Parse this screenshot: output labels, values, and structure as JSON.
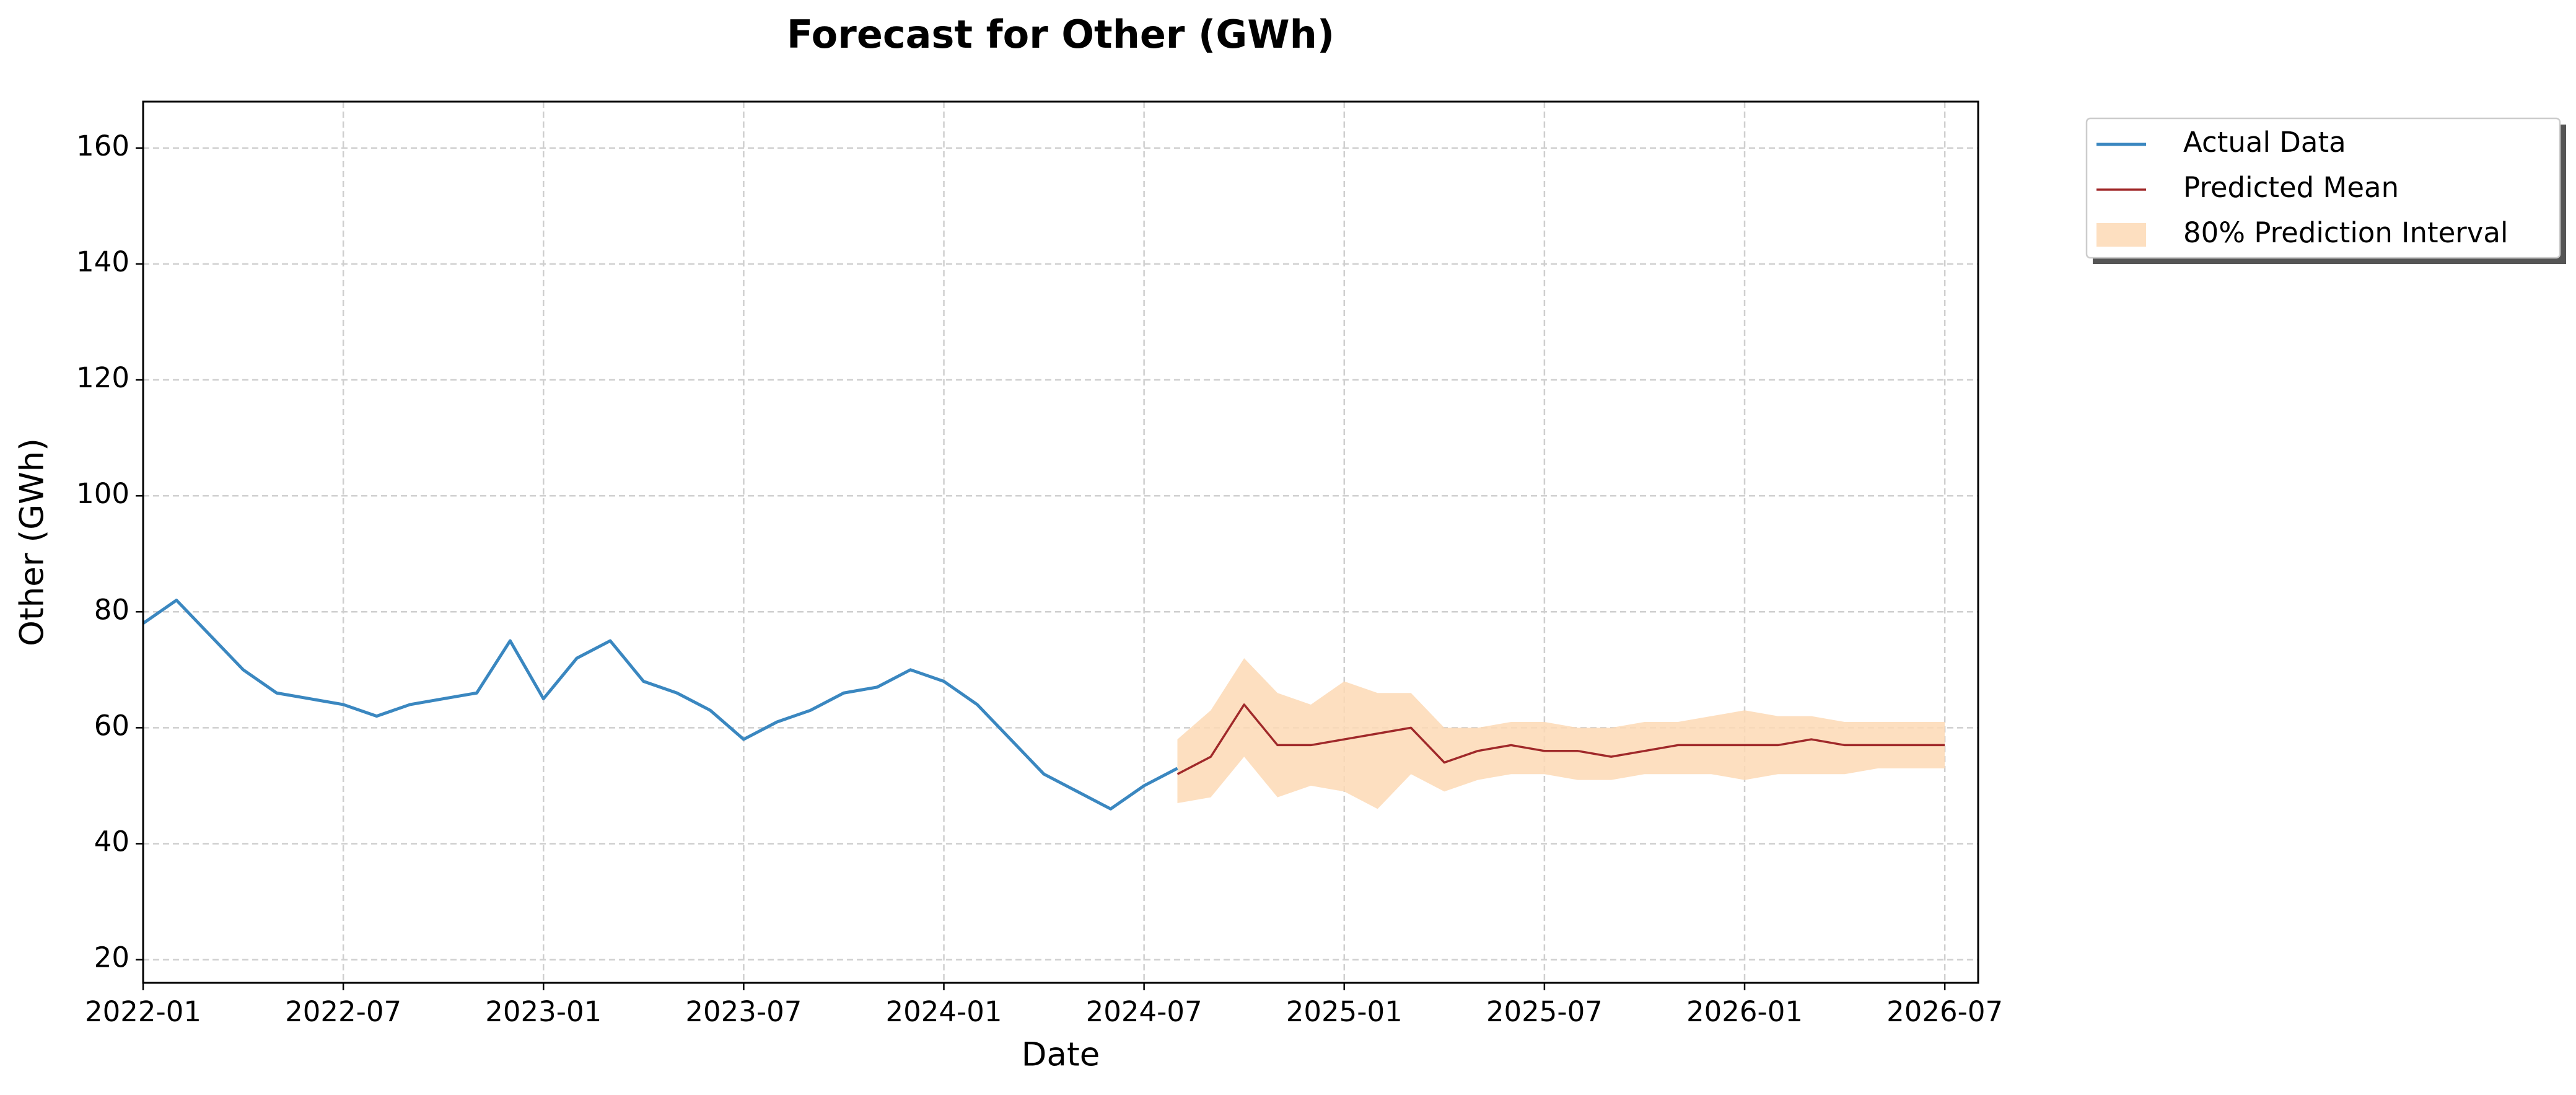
{
  "chart_data": {
    "type": "line",
    "title": "Forecast for Other (GWh)",
    "xlabel": "Date",
    "ylabel": "Other (GWh)",
    "x": [
      "2022-01",
      "2022-02",
      "2022-03",
      "2022-04",
      "2022-05",
      "2022-06",
      "2022-07",
      "2022-08",
      "2022-09",
      "2022-10",
      "2022-11",
      "2022-12",
      "2023-01",
      "2023-02",
      "2023-03",
      "2023-04",
      "2023-05",
      "2023-06",
      "2023-07",
      "2023-08",
      "2023-09",
      "2023-10",
      "2023-11",
      "2023-12",
      "2024-01",
      "2024-02",
      "2024-03",
      "2024-04",
      "2024-05",
      "2024-06",
      "2024-07",
      "2024-08",
      "2024-09",
      "2024-10",
      "2024-11",
      "2024-12",
      "2025-01",
      "2025-02",
      "2025-03",
      "2025-04",
      "2025-05",
      "2025-06",
      "2025-07",
      "2025-08",
      "2025-09",
      "2025-10",
      "2025-11",
      "2025-12",
      "2026-01",
      "2026-02",
      "2026-03",
      "2026-04",
      "2026-05",
      "2026-06",
      "2026-07"
    ],
    "series": [
      {
        "name": "Actual Data",
        "color": "#3a87c0",
        "values": [
          78,
          82,
          76,
          70,
          66,
          65,
          64,
          62,
          64,
          65,
          66,
          75,
          65,
          72,
          75,
          68,
          66,
          63,
          58,
          61,
          63,
          66,
          67,
          70,
          68,
          64,
          58,
          52,
          49,
          46,
          50,
          53,
          null,
          null,
          null,
          null,
          null,
          null,
          null,
          null,
          null,
          null,
          null,
          null,
          null,
          null,
          null,
          null,
          null,
          null,
          null,
          null,
          null,
          null,
          null
        ]
      },
      {
        "name": "Predicted Mean",
        "color": "#a0292a",
        "values": [
          null,
          null,
          null,
          null,
          null,
          null,
          null,
          null,
          null,
          null,
          null,
          null,
          null,
          null,
          null,
          null,
          null,
          null,
          null,
          null,
          null,
          null,
          null,
          null,
          null,
          null,
          null,
          null,
          null,
          null,
          null,
          52,
          55,
          64,
          57,
          57,
          58,
          59,
          60,
          54,
          56,
          57,
          56,
          56,
          55,
          56,
          57,
          57,
          57,
          57,
          58,
          57,
          57,
          57,
          57
        ]
      },
      {
        "name": "80% Prediction Interval",
        "color": "#fdd9b5",
        "lower": [
          null,
          null,
          null,
          null,
          null,
          null,
          null,
          null,
          null,
          null,
          null,
          null,
          null,
          null,
          null,
          null,
          null,
          null,
          null,
          null,
          null,
          null,
          null,
          null,
          null,
          null,
          null,
          null,
          null,
          null,
          null,
          47,
          48,
          55,
          48,
          50,
          49,
          46,
          52,
          49,
          51,
          52,
          52,
          51,
          51,
          52,
          52,
          52,
          51,
          52,
          52,
          52,
          53,
          53,
          53
        ],
        "upper": [
          null,
          null,
          null,
          null,
          null,
          null,
          null,
          null,
          null,
          null,
          null,
          null,
          null,
          null,
          null,
          null,
          null,
          null,
          null,
          null,
          null,
          null,
          null,
          null,
          null,
          null,
          null,
          null,
          null,
          null,
          null,
          58,
          63,
          72,
          66,
          64,
          68,
          66,
          66,
          60,
          60,
          61,
          61,
          60,
          60,
          61,
          61,
          62,
          63,
          62,
          62,
          61,
          61,
          61,
          61
        ]
      }
    ],
    "xlim": [
      "2022-01",
      "2026-08"
    ],
    "xticks": [
      "2022-01",
      "2022-07",
      "2023-01",
      "2023-07",
      "2024-01",
      "2024-07",
      "2025-01",
      "2025-07",
      "2026-01",
      "2026-07"
    ],
    "ylim": [
      16,
      168
    ],
    "yticks": [
      20,
      40,
      60,
      80,
      100,
      120,
      140,
      160
    ],
    "grid": true,
    "legend": "outside-upper-right"
  }
}
